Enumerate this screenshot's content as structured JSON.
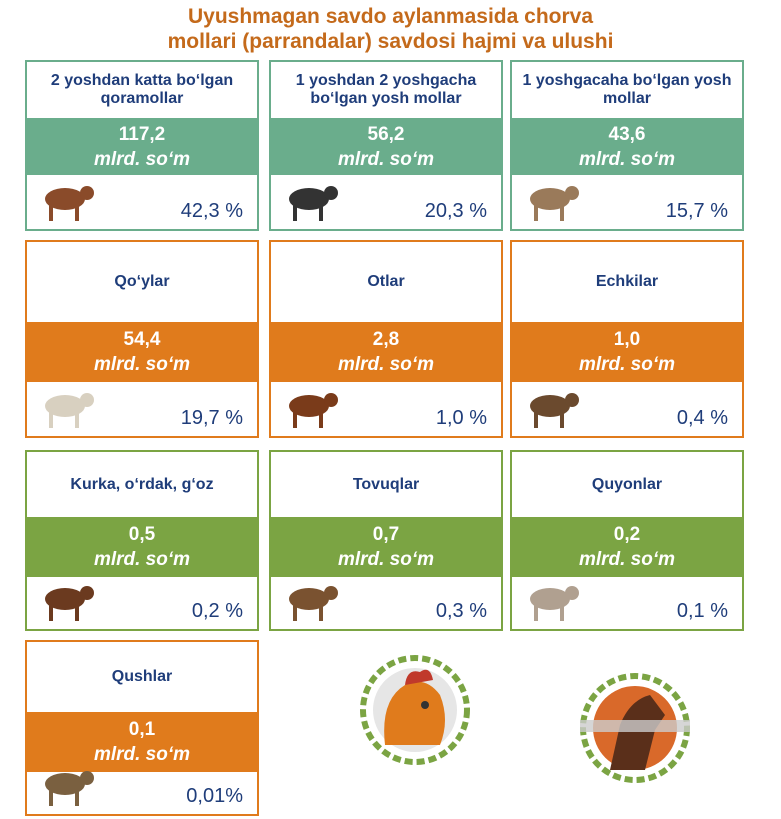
{
  "title_lines": [
    "Uyushmagan savdo aylanmasida chorva",
    "mollari (parrandalar) savdosi hajmi va ulushi"
  ],
  "groups": [
    {
      "color": "#6aad8c",
      "cards": [
        {
          "label": "2 yoshdan katta bo‘lgan qoramollar",
          "value": "117,2",
          "unit": "mlrd. so‘m",
          "share": "42,3 %"
        },
        {
          "label": "1 yoshdan 2 yoshgacha bo‘lgan yosh mollar",
          "value": "56,2",
          "unit": "mlrd. so‘m",
          "share": "20,3 %"
        },
        {
          "label": "1 yoshgacaha bo‘lgan yosh mollar",
          "value": "43,6",
          "unit": "mlrd. so‘m",
          "share": "15,7 %"
        }
      ]
    },
    {
      "color": "#e07b1c",
      "cards": [
        {
          "label": "Qo‘ylar",
          "value": "54,4",
          "unit": "mlrd. so‘m",
          "share": "19,7 %"
        },
        {
          "label": "Otlar",
          "value": "2,8",
          "unit": "mlrd. so‘m",
          "share": "1,0 %"
        },
        {
          "label": "Echkilar",
          "value": "1,0",
          "unit": "mlrd. so‘m",
          "share": "0,4 %"
        }
      ]
    },
    {
      "color": "#7ba443",
      "cards": [
        {
          "label": "Kurka, o‘rdak, g‘oz",
          "value": "0,5",
          "unit": "mlrd. so‘m",
          "share": "0,2 %"
        },
        {
          "label": "Tovuqlar",
          "value": "0,7",
          "unit": "mlrd. so‘m",
          "share": "0,3 %"
        },
        {
          "label": "Quyonlar",
          "value": "0,2",
          "unit": "mlrd. so‘m",
          "share": "0,1 %"
        }
      ]
    },
    {
      "color": "#e07b1c",
      "cards": [
        {
          "label": "Qushlar",
          "value": "0,1",
          "unit": "mlrd. so‘m",
          "share": "0,01%"
        }
      ]
    }
  ]
}
